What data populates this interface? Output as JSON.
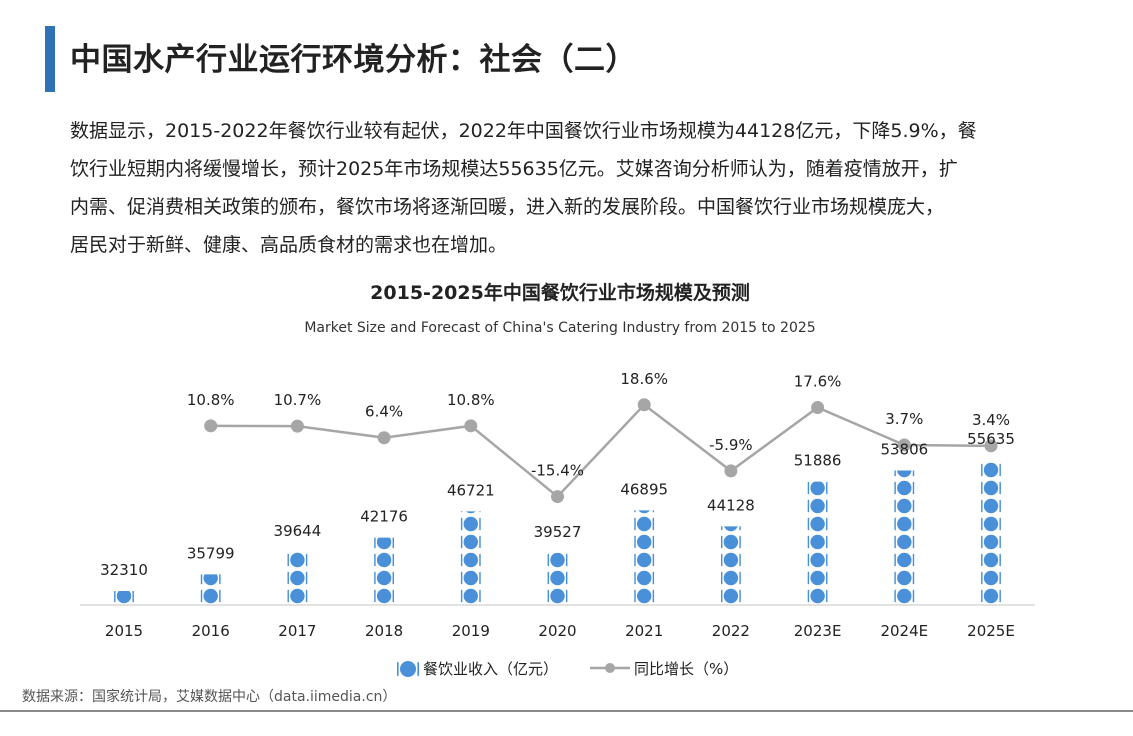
{
  "header": {
    "title": "中国水产行业运行环境分析：社会（二）"
  },
  "intro": {
    "line1": "数据显示，2015-2022年餐饮行业较有起伏，2022年中国餐饮行业市场规模为44128亿元，下降5.9%，餐",
    "line2": "饮行业短期内将缓慢增长，预计2025年市场规模达55635亿元。艾媒咨询分析师认为，随着疫情放开，扩",
    "line3": "内需、促消费相关政策的颁布，餐饮市场将逐渐回暖，进入新的发展阶段。中国餐饮行业市场规模庞大，",
    "line4": "居民对于新鲜、健康、高品质食材的需求也在增加。"
  },
  "chart_data": {
    "type": "bar",
    "title": "2015-2025年中国餐饮行业市场规模及预测",
    "subtitle": "Market Size and Forecast of China's Catering Industry from 2015 to 2025",
    "categories": [
      "2015",
      "2016",
      "2017",
      "2018",
      "2019",
      "2020",
      "2021",
      "2022",
      "2023E",
      "2024E",
      "2025E"
    ],
    "series": [
      {
        "name": "餐饮业收入（亿元）",
        "kind": "bar",
        "values": [
          32310,
          35799,
          39644,
          42176,
          46721,
          39527,
          46895,
          44128,
          51886,
          53806,
          55635
        ]
      },
      {
        "name": "同比增长（%）",
        "kind": "line",
        "values": [
          null,
          10.8,
          10.7,
          6.4,
          10.8,
          -15.4,
          18.6,
          -5.9,
          17.6,
          3.7,
          3.4
        ]
      }
    ],
    "bar_labels": [
      "32310",
      "35799",
      "39644",
      "42176",
      "46721",
      "39527",
      "46895",
      "44128",
      "51886",
      "53806",
      "55635"
    ],
    "line_labels": [
      "",
      "10.8%",
      "10.7%",
      "6.4%",
      "10.8%",
      "-15.4%",
      "18.6%",
      "-5.9%",
      "17.6%",
      "3.7%",
      "3.4%"
    ],
    "legend_position": "bottom-center",
    "bar_icon": "plate-fork-knife-icon",
    "colors": {
      "bar": "#4a90d9",
      "line": "#a6a6a6",
      "axis": "#d9d9d9"
    },
    "grid": false
  },
  "footer": {
    "source": "数据来源：国家统计局，艾媒数据中心（data.iimedia.cn）"
  }
}
